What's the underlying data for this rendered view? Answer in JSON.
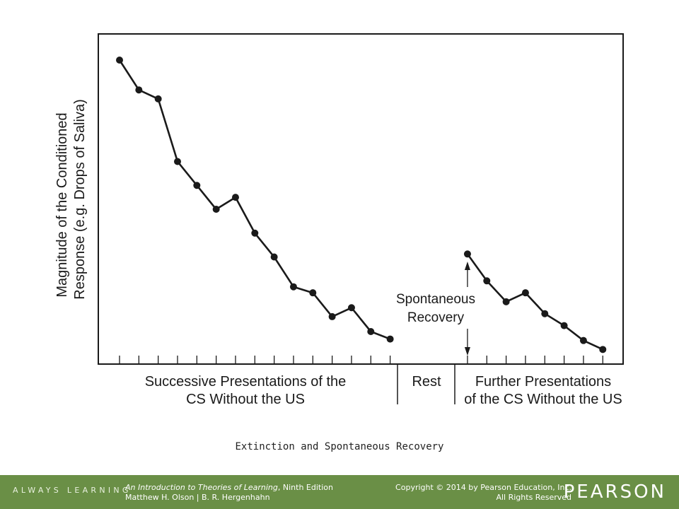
{
  "chart_data": {
    "type": "line",
    "ylabel_line1": "Magnitude of the Conditioned",
    "ylabel_line2": "Response (e.g. Drops of Saliva)",
    "segments": [
      {
        "label_lines": [
          "Successive Presentations of the",
          "CS Without the US"
        ]
      },
      {
        "label_lines": [
          "Rest"
        ]
      },
      {
        "label_lines": [
          "Further Presentations",
          "of the CS Without the US"
        ]
      }
    ],
    "ylim": [
      0,
      100
    ],
    "series": [
      {
        "values": [
          [
            1,
            100
          ],
          [
            2,
            90
          ],
          [
            3,
            87
          ],
          [
            4,
            66
          ],
          [
            5,
            58
          ],
          [
            6,
            50
          ],
          [
            7,
            54
          ],
          [
            8,
            42
          ],
          [
            9,
            34
          ],
          [
            10,
            24
          ],
          [
            11,
            22
          ],
          [
            12,
            14
          ],
          [
            13,
            17
          ],
          [
            14,
            9
          ],
          [
            15,
            6.5
          ]
        ]
      },
      {
        "values": [
          [
            19,
            35
          ],
          [
            20,
            26
          ],
          [
            21,
            19
          ],
          [
            22,
            22
          ],
          [
            23,
            15
          ],
          [
            24,
            11
          ],
          [
            25,
            6
          ],
          [
            26,
            3
          ]
        ]
      }
    ],
    "tick_positions": [
      1,
      2,
      3,
      4,
      5,
      6,
      7,
      8,
      9,
      10,
      11,
      12,
      13,
      14,
      15,
      19,
      20,
      21,
      22,
      23,
      24,
      25,
      26
    ],
    "annotation": {
      "text_lines": [
        "Spontaneous",
        "Recovery"
      ],
      "x": 19
    },
    "grid": false
  },
  "caption": "Extinction and Spontaneous Recovery",
  "footer": {
    "tagline": "ALWAYS LEARNING",
    "book_title": "An Introduction to Theories of Learning",
    "book_edition": ", Ninth Edition",
    "authors": "Matthew H. Olson | B. R. Hergenhahn",
    "copyright": "Copyright © 2014 by Pearson Education, Inc.",
    "rights": "All Rights Reserved",
    "brand": "PEARSON"
  },
  "colors": {
    "footer": "#6a8f46",
    "ink": "#1a1a1a"
  }
}
